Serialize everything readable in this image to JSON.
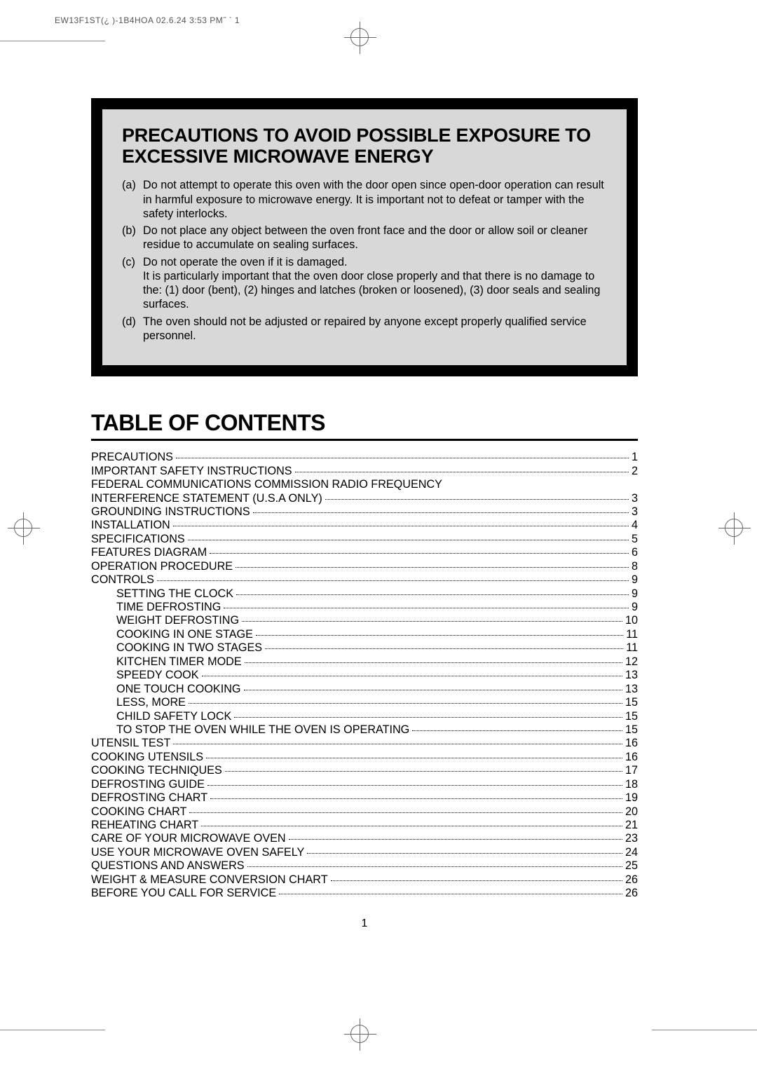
{
  "header": "EW13F1ST(¿ )-1B4HOA 02.6.24 3:53 PM˝   ` 1",
  "page_number": "1",
  "box": {
    "title": "PRECAUTIONS TO AVOID POSSIBLE EXPOSURE TO EXCESSIVE MICROWAVE ENERGY",
    "items": [
      {
        "label": "(a)",
        "text": "Do not attempt to operate this oven with the door open since open-door operation can result in harmful exposure to microwave energy. It is important not to defeat or tamper with the safety interlocks."
      },
      {
        "label": "(b)",
        "text": "Do not place any object between the oven front face and the door or allow soil or cleaner residue to accumulate on sealing surfaces."
      },
      {
        "label": "(c)",
        "text": "Do not operate the oven if it is damaged.",
        "sub": "It is particularly important that the oven door close properly and that there is no damage to the: (1) door (bent), (2) hinges and latches (broken or loosened), (3) door seals and sealing surfaces."
      },
      {
        "label": "(d)",
        "text": "The oven should not be adjusted or repaired by anyone except properly qualified service personnel."
      }
    ]
  },
  "toc": {
    "title": "TABLE OF CONTENTS",
    "rows": [
      {
        "title": "PRECAUTIONS",
        "page": "1"
      },
      {
        "title": "IMPORTANT SAFETY INSTRUCTIONS",
        "page": "2"
      },
      {
        "title": "FEDERAL COMMUNICATIONS COMMISSION RADIO FREQUENCY",
        "page": "",
        "nopage": true
      },
      {
        "title": "INTERFERENCE STATEMENT (U.S.A ONLY)",
        "page": "3"
      },
      {
        "title": "GROUNDING INSTRUCTIONS",
        "page": "3"
      },
      {
        "title": "INSTALLATION",
        "page": "4"
      },
      {
        "title": "SPECIFICATIONS",
        "page": "5"
      },
      {
        "title": "FEATURES DIAGRAM",
        "page": "6"
      },
      {
        "title": "OPERATION PROCEDURE",
        "page": "8"
      },
      {
        "title": "CONTROLS",
        "page": "9"
      },
      {
        "title": "SETTING THE CLOCK",
        "page": "9",
        "indent": 1
      },
      {
        "title": "TIME DEFROSTING",
        "page": "9",
        "indent": 1
      },
      {
        "title": "WEIGHT DEFROSTING",
        "page": "10",
        "indent": 1
      },
      {
        "title": "COOKING IN ONE STAGE",
        "page": "11",
        "indent": 1
      },
      {
        "title": "COOKING IN TWO STAGES",
        "page": "11",
        "indent": 1
      },
      {
        "title": "KITCHEN TIMER MODE",
        "page": "12",
        "indent": 1
      },
      {
        "title": "SPEEDY COOK",
        "page": "13",
        "indent": 1
      },
      {
        "title": "ONE TOUCH COOKING",
        "page": "13",
        "indent": 1
      },
      {
        "title": "LESS, MORE",
        "page": "15",
        "indent": 1
      },
      {
        "title": "CHILD SAFETY LOCK",
        "page": "15",
        "indent": 1
      },
      {
        "title": "TO STOP THE OVEN WHILE THE OVEN IS OPERATING",
        "page": "15",
        "indent": 1
      },
      {
        "title": "UTENSIL TEST",
        "page": "16"
      },
      {
        "title": "COOKING UTENSILS",
        "page": "16"
      },
      {
        "title": "COOKING TECHNIQUES",
        "page": "17"
      },
      {
        "title": "DEFROSTING GUIDE",
        "page": "18"
      },
      {
        "title": "DEFROSTING CHART",
        "page": "19"
      },
      {
        "title": "COOKING CHART",
        "page": "20"
      },
      {
        "title": "REHEATING CHART",
        "page": "21"
      },
      {
        "title": "CARE OF YOUR MICROWAVE OVEN",
        "page": "23"
      },
      {
        "title": "USE YOUR MICROWAVE OVEN SAFELY",
        "page": "24"
      },
      {
        "title": "QUESTIONS AND ANSWERS",
        "page": "25"
      },
      {
        "title": "WEIGHT & MEASURE CONVERSION CHART",
        "page": "26"
      },
      {
        "title": "BEFORE YOU CALL FOR SERVICE",
        "page": "26"
      }
    ]
  }
}
